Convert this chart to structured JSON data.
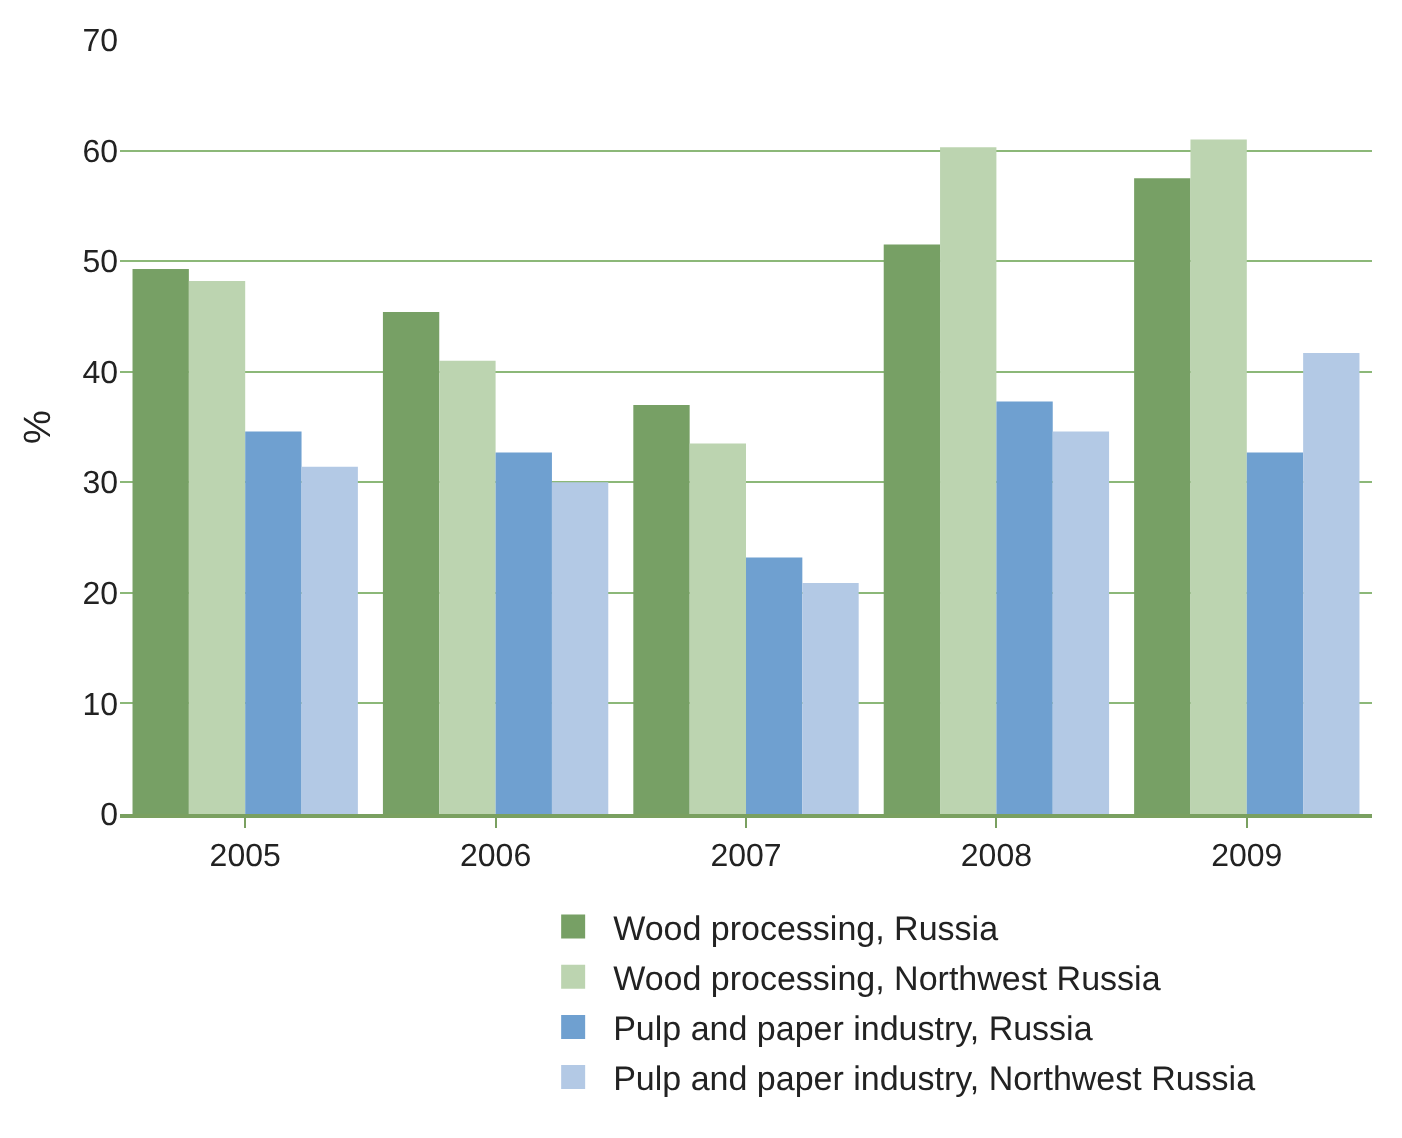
{
  "chart_data": {
    "type": "bar",
    "ylabel": "%",
    "categories": [
      "2005",
      "2006",
      "2007",
      "2008",
      "2009"
    ],
    "series": [
      {
        "name": "Wood processing, Russia",
        "color": "#77a065",
        "values": [
          49.3,
          45.4,
          37.0,
          51.5,
          57.5
        ]
      },
      {
        "name": "Wood processing, Northwest Russia",
        "color": "#bcd4b0",
        "values": [
          48.2,
          41.0,
          33.5,
          60.3,
          61.0
        ]
      },
      {
        "name": "Pulp and paper industry, Russia",
        "color": "#6fa0d0",
        "values": [
          34.6,
          32.7,
          23.2,
          37.3,
          32.7
        ]
      },
      {
        "name": "Pulp and paper industry, Northwest Russia",
        "color": "#b3c9e5",
        "values": [
          31.4,
          30.0,
          20.9,
          34.6,
          41.7
        ]
      }
    ],
    "ylim": [
      0,
      70
    ],
    "yticks": [
      0,
      10,
      20,
      30,
      40,
      50,
      60,
      70
    ],
    "grid": "y",
    "legend": "bottom"
  }
}
